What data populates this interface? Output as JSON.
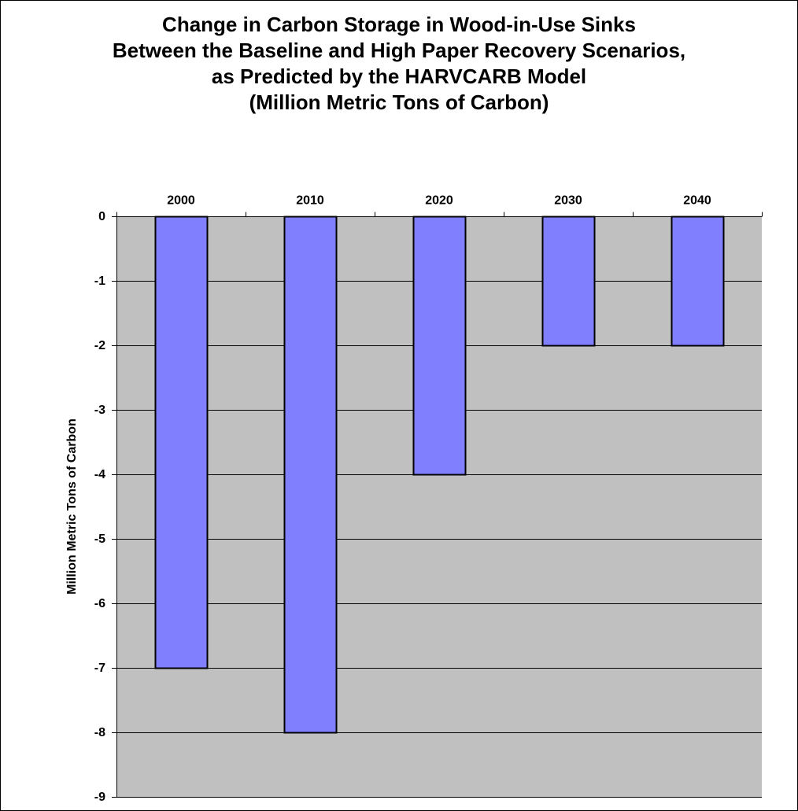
{
  "chart_data": {
    "type": "bar",
    "title_lines": [
      "Change in Carbon Storage in Wood-in-Use Sinks",
      "Between the Baseline and High Paper Recovery Scenarios,",
      "as Predicted by the HARVCARB Model",
      "(Million Metric Tons of Carbon)"
    ],
    "categories": [
      "2000",
      "2010",
      "2020",
      "2030",
      "2040"
    ],
    "values": [
      -7,
      -8,
      -4,
      -2,
      -2
    ],
    "xlabel": "",
    "ylabel": "Million Metric Tons of Carbon",
    "ylim": [
      -9,
      0
    ],
    "yticks": [
      "0",
      "-1",
      "-2",
      "-3",
      "-4",
      "-5",
      "-6",
      "-7",
      "-8",
      "-9"
    ],
    "x_axis_position": "top",
    "grid": true,
    "legend": "none",
    "colors": {
      "bar_fill": "#8080FF",
      "bar_stroke": "#000000",
      "plot_background": "#C0C0C0",
      "gridline": "#000000"
    }
  }
}
